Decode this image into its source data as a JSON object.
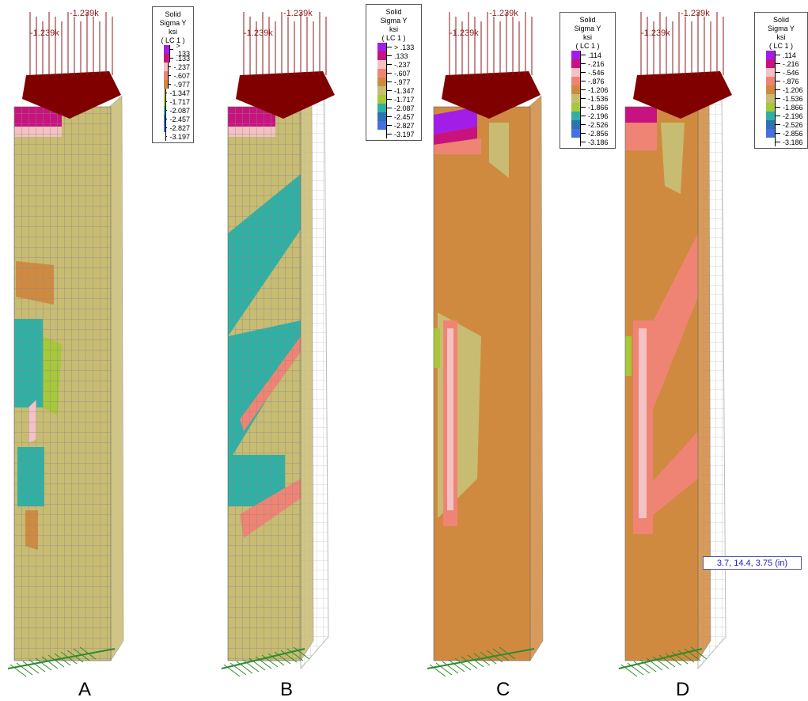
{
  "legend_title": [
    "Solid",
    "Sigma Y",
    "ksi",
    "( LC 1 )"
  ],
  "panels": [
    {
      "label": "A",
      "load_label": "-1.239k",
      "legend": [
        ">  .133",
        ".133",
        "-.237",
        "-.607",
        "-.977",
        "-1.347",
        "-1.717",
        "-2.087",
        "-2.457",
        "-2.827",
        "-3.197"
      ]
    },
    {
      "label": "B",
      "load_label": "-1.239k",
      "legend": [
        ">  .133",
        ".133",
        "-.237",
        "-.607",
        "-.977",
        "-1.347",
        "-1.717",
        "-2.087",
        "-2.457",
        "-2.827",
        "-3.197"
      ]
    },
    {
      "label": "C",
      "load_label": "-1.239k",
      "legend": [
        ".114",
        "-.216",
        "-.546",
        "-.876",
        "-1.206",
        "-1.536",
        "-1.866",
        "-2.196",
        "-2.526",
        "-2.856",
        "-3.186"
      ]
    },
    {
      "label": "D",
      "load_label": "-1.239k",
      "legend": [
        ".114",
        "-.216",
        "-.546",
        "-.876",
        "-1.206",
        "-1.536",
        "-1.866",
        "-2.196",
        "-2.526",
        "-2.856",
        "-3.186"
      ]
    }
  ],
  "legend_colors": [
    "#a21ee8",
    "#c8127f",
    "#f3c2c2",
    "#f08474",
    "#d08a40",
    "#c8bc72",
    "#a6c83a",
    "#2fb0a4",
    "#2f72b2",
    "#4670e2",
    "#ffffff"
  ],
  "coordinate": "3.7, 14.4, 3.75 (in)"
}
